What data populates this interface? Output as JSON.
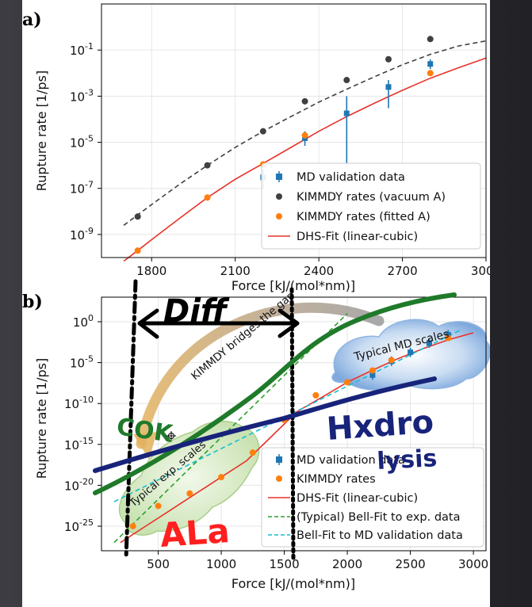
{
  "chart_data": [
    {
      "panel": "a)",
      "type": "scatter",
      "xlabel": "Force [kJ/(mol*nm)]",
      "ylabel": "Rupture rate [1/ps]",
      "yscale": "log",
      "xlim": [
        1620,
        3000
      ],
      "ylim": [
        1e-10,
        10
      ],
      "xticks": [
        1800,
        2100,
        2400,
        2700,
        3000
      ],
      "yticks": [
        "10^-9",
        "10^-7",
        "10^-5",
        "10^-3",
        "10^-1"
      ],
      "grid": true,
      "legend_position": "lower-right",
      "series": [
        {
          "name": "MD validation data",
          "kind": "errorbar",
          "color": "#1f77b4",
          "x": [
            2200,
            2350,
            2500,
            2650,
            2800
          ],
          "y": [
            3e-07,
            1.5e-05,
            0.00018,
            0.0025,
            0.025
          ],
          "ylow": [
            1e-07,
            7e-06,
            1e-06,
            0.0003,
            0.015
          ],
          "yhigh": [
            7e-07,
            3e-05,
            0.001,
            0.005,
            0.04
          ]
        },
        {
          "name": "KIMMDY rates (vacuum A)",
          "kind": "points",
          "color": "#404040",
          "x": [
            1750,
            2000,
            2200,
            2350,
            2500,
            2650,
            2800
          ],
          "y": [
            6e-09,
            1e-06,
            3e-05,
            0.0006,
            0.005,
            0.04,
            0.3
          ]
        },
        {
          "name": "KIMMDY rates (fitted A)",
          "kind": "points",
          "color": "#ff7f0e",
          "x": [
            1750,
            2000,
            2200,
            2350,
            2800
          ],
          "y": [
            2e-10,
            4e-08,
            1.1e-06,
            2e-05,
            0.01
          ]
        },
        {
          "name": "DHS-Fit (linear-cubic)",
          "kind": "line",
          "color": "#e8322a",
          "x": [
            1700,
            1750,
            1800,
            1900,
            2000,
            2100,
            2200,
            2300,
            2400,
            2500,
            2600,
            2700,
            2800,
            2900,
            3000
          ],
          "y": [
            7e-11,
            2e-10,
            6e-10,
            5e-09,
            4e-08,
            2.5e-07,
            1.2e-06,
            6e-06,
            3e-05,
            0.00013,
            0.0005,
            0.0018,
            0.006,
            0.017,
            0.045
          ]
        },
        {
          "name": "",
          "kind": "dashed-line",
          "color": "#404040",
          "x": [
            1700,
            1800,
            1900,
            2000,
            2100,
            2200,
            2300,
            2400,
            2500,
            2600,
            2700,
            2800,
            2900,
            3000
          ],
          "y": [
            2.5e-09,
            2e-08,
            1.5e-07,
            1e-06,
            6e-06,
            3e-05,
            0.00013,
            0.00055,
            0.002,
            0.007,
            0.023,
            0.065,
            0.15,
            0.25
          ]
        }
      ]
    },
    {
      "panel": "b)",
      "type": "scatter",
      "xlabel": "Force [kJ/(mol*nm)]",
      "ylabel": "Rupture rate [1/ps]",
      "yscale": "log",
      "xlim": [
        50,
        3100
      ],
      "ylim": [
        1e-28,
        1000.0
      ],
      "xticks": [
        500,
        1000,
        1500,
        2000,
        2500,
        3000
      ],
      "yticks": [
        "10^0",
        "10^-5",
        "10^-10",
        "10^-15",
        "10^-20",
        "10^-25"
      ],
      "grid": true,
      "legend_position": "lower-right",
      "series": [
        {
          "name": "MD validation data",
          "kind": "errorbar",
          "color": "#1f77b4",
          "x": [
            2200,
            2350,
            2500,
            2650,
            2800
          ],
          "y": [
            3e-07,
            1.5e-05,
            0.00018,
            0.0025,
            0.025
          ]
        },
        {
          "name": "KIMMDY rates",
          "kind": "points",
          "color": "#ff7f0e",
          "x": [
            300,
            500,
            750,
            1000,
            1250,
            1500,
            1750,
            2000,
            2200,
            2350,
            2800
          ],
          "y": [
            1e-25,
            3e-23,
            1e-21,
            1e-19,
            1e-16,
            1e-12,
            1e-09,
            4e-08,
            1.1e-06,
            2e-05,
            0.01
          ]
        },
        {
          "name": "DHS-Fit (linear-cubic)",
          "kind": "line",
          "color": "#e8322a",
          "x": [
            200,
            400,
            600,
            800,
            1000,
            1200,
            1400,
            1600,
            1800,
            2000,
            2200,
            2400,
            2600,
            2800,
            3000
          ],
          "y": [
            1e-27,
            1e-25,
            1e-23,
            1e-21,
            1e-19,
            1e-17,
            1e-14,
            1e-11,
            6e-10,
            4e-08,
            1.2e-06,
            3e-05,
            0.0005,
            0.006,
            0.045
          ]
        },
        {
          "name": "(Typical) Bell-Fit to exp. data",
          "kind": "dashed-line",
          "color": "#2ca02c",
          "x": [
            150,
            2000
          ],
          "y": [
            1e-27,
            10.0
          ]
        },
        {
          "name": "Bell-Fit to MD validation data",
          "kind": "dashed-line",
          "color": "#17becf",
          "x": [
            150,
            2900
          ],
          "y": [
            1e-22,
            0.1
          ]
        }
      ],
      "annotations": {
        "md_region": "Typical MD scales",
        "exp_region": "Typical exp. scales",
        "arrow_label": "KIMMDY bridges the gap"
      }
    }
  ],
  "handwriting": {
    "diff": "Diff",
    "cok": "COK",
    "hydro": "Hxdro",
    "lysis": "lysis",
    "ala": "ALa"
  },
  "colors": {
    "md": "#1f77b4",
    "vacuum": "#404040",
    "fitted": "#ff7f0e",
    "dhs": "#e8322a",
    "bell_exp": "#2ca02c",
    "bell_md": "#17becf",
    "ink_black": "#000000",
    "ink_green": "#1f7a2a",
    "ink_blue": "#18237a",
    "ink_red": "#ff1f1f"
  }
}
